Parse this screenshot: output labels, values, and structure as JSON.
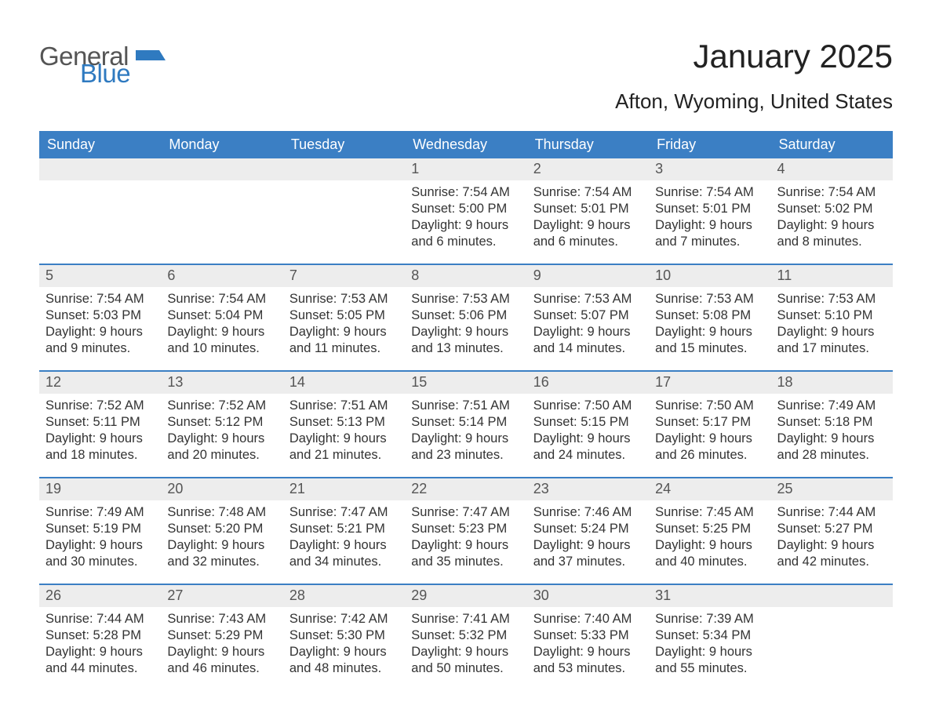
{
  "logo": {
    "word1": "General",
    "word2": "Blue",
    "flag_color": "#2f7ac0"
  },
  "title": "January 2025",
  "subtitle": "Afton, Wyoming, United States",
  "colors": {
    "header_bg": "#3b7fc4",
    "header_text": "#ffffff",
    "date_bg": "#ededed",
    "date_text": "#555555",
    "body_text": "#333333",
    "week_border": "#3b7fc4",
    "page_bg": "#ffffff"
  },
  "typography": {
    "title_fontsize": 42,
    "subtitle_fontsize": 26,
    "dayheader_fontsize": 18,
    "date_fontsize": 18,
    "body_fontsize": 16.5,
    "font_family": "Arial"
  },
  "day_names": [
    "Sunday",
    "Monday",
    "Tuesday",
    "Wednesday",
    "Thursday",
    "Friday",
    "Saturday"
  ],
  "weeks": [
    [
      null,
      null,
      null,
      {
        "d": "1",
        "sr": "Sunrise: 7:54 AM",
        "ss": "Sunset: 5:00 PM",
        "dl1": "Daylight: 9 hours",
        "dl2": "and 6 minutes."
      },
      {
        "d": "2",
        "sr": "Sunrise: 7:54 AM",
        "ss": "Sunset: 5:01 PM",
        "dl1": "Daylight: 9 hours",
        "dl2": "and 6 minutes."
      },
      {
        "d": "3",
        "sr": "Sunrise: 7:54 AM",
        "ss": "Sunset: 5:01 PM",
        "dl1": "Daylight: 9 hours",
        "dl2": "and 7 minutes."
      },
      {
        "d": "4",
        "sr": "Sunrise: 7:54 AM",
        "ss": "Sunset: 5:02 PM",
        "dl1": "Daylight: 9 hours",
        "dl2": "and 8 minutes."
      }
    ],
    [
      {
        "d": "5",
        "sr": "Sunrise: 7:54 AM",
        "ss": "Sunset: 5:03 PM",
        "dl1": "Daylight: 9 hours",
        "dl2": "and 9 minutes."
      },
      {
        "d": "6",
        "sr": "Sunrise: 7:54 AM",
        "ss": "Sunset: 5:04 PM",
        "dl1": "Daylight: 9 hours",
        "dl2": "and 10 minutes."
      },
      {
        "d": "7",
        "sr": "Sunrise: 7:53 AM",
        "ss": "Sunset: 5:05 PM",
        "dl1": "Daylight: 9 hours",
        "dl2": "and 11 minutes."
      },
      {
        "d": "8",
        "sr": "Sunrise: 7:53 AM",
        "ss": "Sunset: 5:06 PM",
        "dl1": "Daylight: 9 hours",
        "dl2": "and 13 minutes."
      },
      {
        "d": "9",
        "sr": "Sunrise: 7:53 AM",
        "ss": "Sunset: 5:07 PM",
        "dl1": "Daylight: 9 hours",
        "dl2": "and 14 minutes."
      },
      {
        "d": "10",
        "sr": "Sunrise: 7:53 AM",
        "ss": "Sunset: 5:08 PM",
        "dl1": "Daylight: 9 hours",
        "dl2": "and 15 minutes."
      },
      {
        "d": "11",
        "sr": "Sunrise: 7:53 AM",
        "ss": "Sunset: 5:10 PM",
        "dl1": "Daylight: 9 hours",
        "dl2": "and 17 minutes."
      }
    ],
    [
      {
        "d": "12",
        "sr": "Sunrise: 7:52 AM",
        "ss": "Sunset: 5:11 PM",
        "dl1": "Daylight: 9 hours",
        "dl2": "and 18 minutes."
      },
      {
        "d": "13",
        "sr": "Sunrise: 7:52 AM",
        "ss": "Sunset: 5:12 PM",
        "dl1": "Daylight: 9 hours",
        "dl2": "and 20 minutes."
      },
      {
        "d": "14",
        "sr": "Sunrise: 7:51 AM",
        "ss": "Sunset: 5:13 PM",
        "dl1": "Daylight: 9 hours",
        "dl2": "and 21 minutes."
      },
      {
        "d": "15",
        "sr": "Sunrise: 7:51 AM",
        "ss": "Sunset: 5:14 PM",
        "dl1": "Daylight: 9 hours",
        "dl2": "and 23 minutes."
      },
      {
        "d": "16",
        "sr": "Sunrise: 7:50 AM",
        "ss": "Sunset: 5:15 PM",
        "dl1": "Daylight: 9 hours",
        "dl2": "and 24 minutes."
      },
      {
        "d": "17",
        "sr": "Sunrise: 7:50 AM",
        "ss": "Sunset: 5:17 PM",
        "dl1": "Daylight: 9 hours",
        "dl2": "and 26 minutes."
      },
      {
        "d": "18",
        "sr": "Sunrise: 7:49 AM",
        "ss": "Sunset: 5:18 PM",
        "dl1": "Daylight: 9 hours",
        "dl2": "and 28 minutes."
      }
    ],
    [
      {
        "d": "19",
        "sr": "Sunrise: 7:49 AM",
        "ss": "Sunset: 5:19 PM",
        "dl1": "Daylight: 9 hours",
        "dl2": "and 30 minutes."
      },
      {
        "d": "20",
        "sr": "Sunrise: 7:48 AM",
        "ss": "Sunset: 5:20 PM",
        "dl1": "Daylight: 9 hours",
        "dl2": "and 32 minutes."
      },
      {
        "d": "21",
        "sr": "Sunrise: 7:47 AM",
        "ss": "Sunset: 5:21 PM",
        "dl1": "Daylight: 9 hours",
        "dl2": "and 34 minutes."
      },
      {
        "d": "22",
        "sr": "Sunrise: 7:47 AM",
        "ss": "Sunset: 5:23 PM",
        "dl1": "Daylight: 9 hours",
        "dl2": "and 35 minutes."
      },
      {
        "d": "23",
        "sr": "Sunrise: 7:46 AM",
        "ss": "Sunset: 5:24 PM",
        "dl1": "Daylight: 9 hours",
        "dl2": "and 37 minutes."
      },
      {
        "d": "24",
        "sr": "Sunrise: 7:45 AM",
        "ss": "Sunset: 5:25 PM",
        "dl1": "Daylight: 9 hours",
        "dl2": "and 40 minutes."
      },
      {
        "d": "25",
        "sr": "Sunrise: 7:44 AM",
        "ss": "Sunset: 5:27 PM",
        "dl1": "Daylight: 9 hours",
        "dl2": "and 42 minutes."
      }
    ],
    [
      {
        "d": "26",
        "sr": "Sunrise: 7:44 AM",
        "ss": "Sunset: 5:28 PM",
        "dl1": "Daylight: 9 hours",
        "dl2": "and 44 minutes."
      },
      {
        "d": "27",
        "sr": "Sunrise: 7:43 AM",
        "ss": "Sunset: 5:29 PM",
        "dl1": "Daylight: 9 hours",
        "dl2": "and 46 minutes."
      },
      {
        "d": "28",
        "sr": "Sunrise: 7:42 AM",
        "ss": "Sunset: 5:30 PM",
        "dl1": "Daylight: 9 hours",
        "dl2": "and 48 minutes."
      },
      {
        "d": "29",
        "sr": "Sunrise: 7:41 AM",
        "ss": "Sunset: 5:32 PM",
        "dl1": "Daylight: 9 hours",
        "dl2": "and 50 minutes."
      },
      {
        "d": "30",
        "sr": "Sunrise: 7:40 AM",
        "ss": "Sunset: 5:33 PM",
        "dl1": "Daylight: 9 hours",
        "dl2": "and 53 minutes."
      },
      {
        "d": "31",
        "sr": "Sunrise: 7:39 AM",
        "ss": "Sunset: 5:34 PM",
        "dl1": "Daylight: 9 hours",
        "dl2": "and 55 minutes."
      },
      null
    ]
  ]
}
